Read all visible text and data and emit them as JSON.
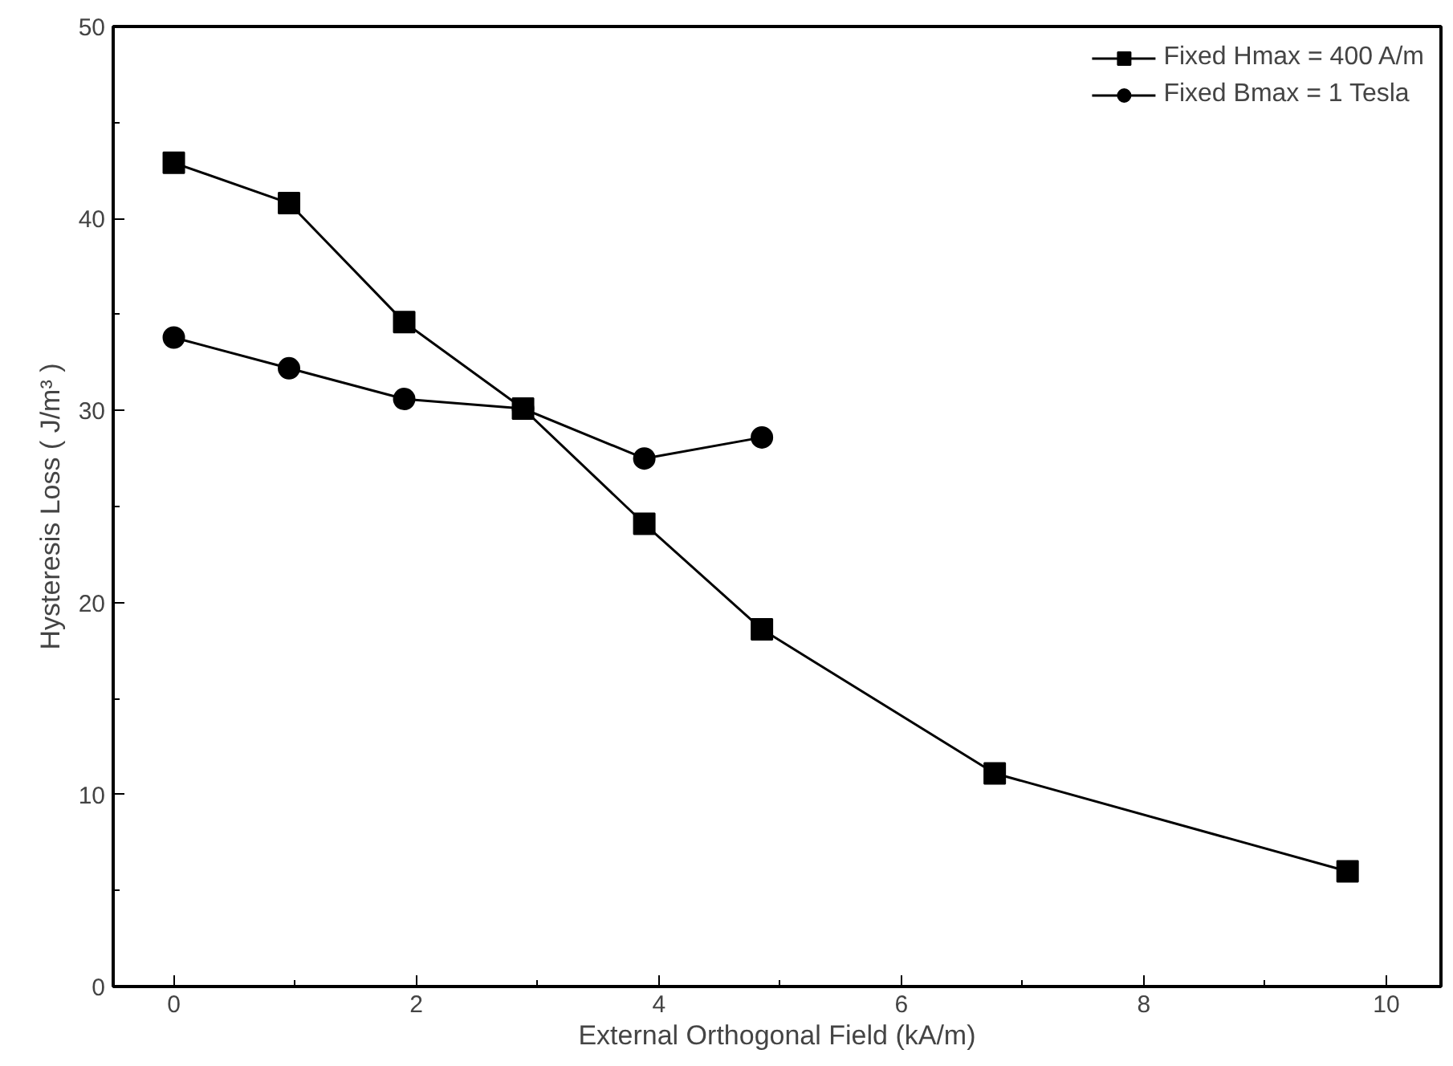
{
  "chart_data": {
    "type": "line",
    "xlabel": "External Orthogonal Field (kA/m)",
    "ylabel": "Hysteresis Loss ( J/m³ )",
    "xlim": [
      -0.5,
      10.45
    ],
    "ylim": [
      0,
      50
    ],
    "xticks": [
      0,
      2,
      4,
      6,
      8,
      10
    ],
    "yticks": [
      0,
      10,
      20,
      30,
      40,
      50
    ],
    "grid": false,
    "legend": "top right",
    "line_style": "solid",
    "series": [
      {
        "name": "Fixed Hmax = 400 A/m",
        "color": "#000000",
        "marker": "square",
        "x": [
          0,
          0.95,
          1.9,
          2.88,
          3.88,
          4.85,
          6.77,
          9.68
        ],
        "values": [
          42.9,
          40.8,
          34.6,
          30.1,
          24.1,
          18.6,
          11.1,
          6.0
        ]
      },
      {
        "name": "Fixed Bmax = 1 Tesla",
        "color": "#000000",
        "marker": "circle",
        "x": [
          0,
          0.95,
          1.9,
          2.88,
          3.88,
          4.85
        ],
        "values": [
          33.8,
          32.2,
          30.6,
          30.1,
          27.5,
          28.6
        ]
      }
    ]
  }
}
